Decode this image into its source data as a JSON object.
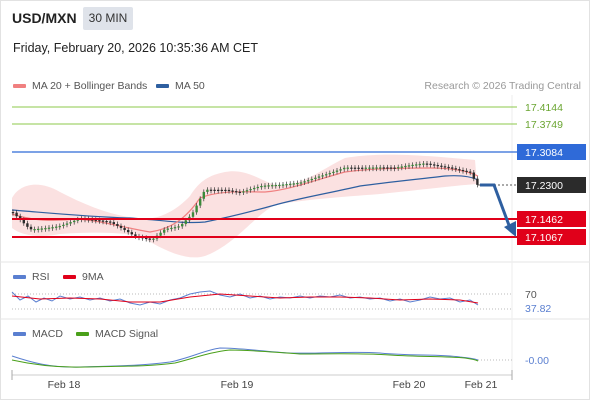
{
  "header": {
    "symbol": "USD/MXN",
    "timeframe": "30 MIN",
    "timestamp": "Friday, February 20, 2026 10:35:36 AM CET"
  },
  "legend": {
    "ma20_label": "MA 20 + Bollinger Bands",
    "ma50_label": "MA 50",
    "credit": "Research © 2026 Trading Central"
  },
  "levels": {
    "r3": "17.4144",
    "r2": "17.3749",
    "r1": "17.3084",
    "last": "17.2300",
    "s1": "17.1462",
    "s2": "17.1067"
  },
  "rsi": {
    "label": "RSI",
    "ma_label": "9MA",
    "level": "70",
    "value": "37.82"
  },
  "macd": {
    "label": "MACD",
    "signal_label": "MACD Signal",
    "value": "-0.00"
  },
  "x_axis": [
    "Feb 18",
    "Feb 19",
    "Feb 20",
    "Feb 21"
  ],
  "colors": {
    "ma20": "#f08080",
    "ma50": "#2e5fa0",
    "support": "#e0001a",
    "resistance_green": "#8cc84b",
    "resistance_blue": "#2f6ad8",
    "arrow": "#2e5fa0",
    "rsi_line": "#5a7fd0",
    "rsi_ma": "#e0001a",
    "macd_line": "#5a7fd0",
    "macd_signal": "#4aa01a"
  }
}
